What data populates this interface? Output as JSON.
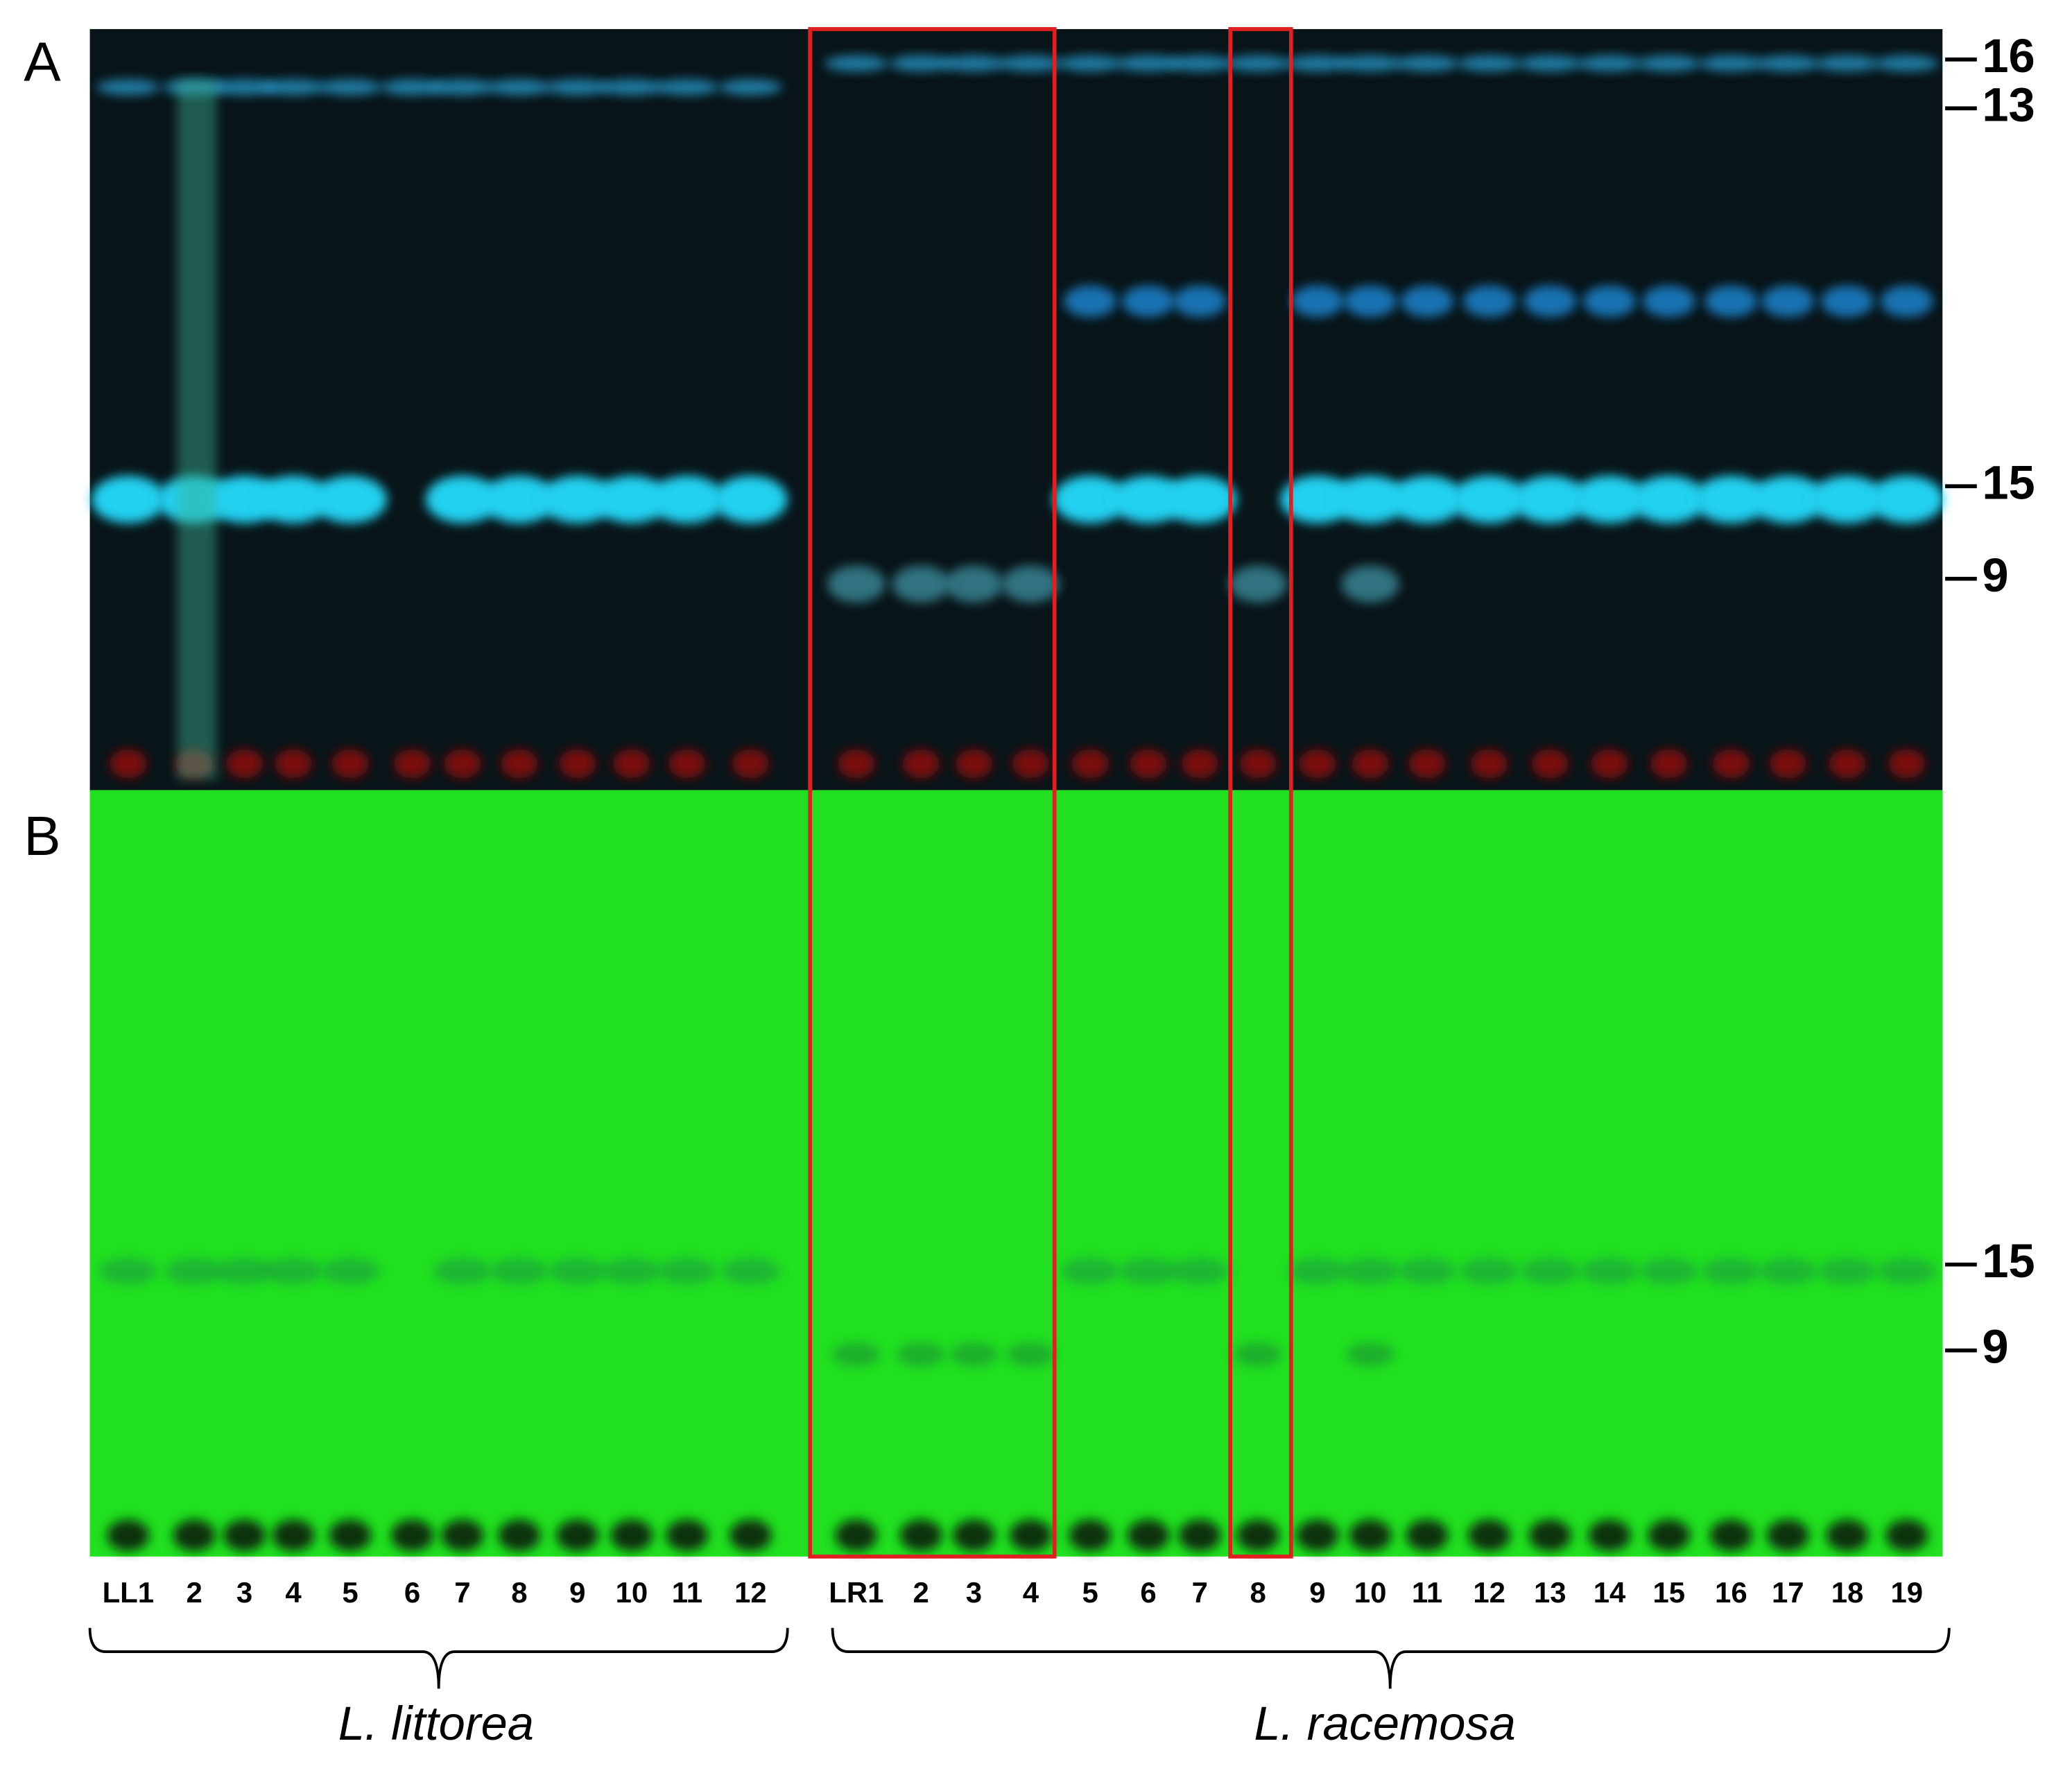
{
  "panels": [
    {
      "label": "A",
      "bands": [
        "16",
        "13",
        "15",
        "9"
      ]
    },
    {
      "label": "B",
      "bands": [
        "15",
        "9"
      ]
    }
  ],
  "groups": [
    {
      "name": "L. littorea",
      "lanes": [
        "LL1",
        "2",
        "3",
        "4",
        "5",
        "6",
        "7",
        "8",
        "9",
        "10",
        "11",
        "12"
      ]
    },
    {
      "name": "L. racemosa",
      "lanes": [
        "LR1",
        "2",
        "3",
        "4",
        "5",
        "6",
        "7",
        "8",
        "9",
        "10",
        "11",
        "12",
        "13",
        "14",
        "15",
        "16",
        "17",
        "18",
        "19"
      ]
    }
  ]
}
